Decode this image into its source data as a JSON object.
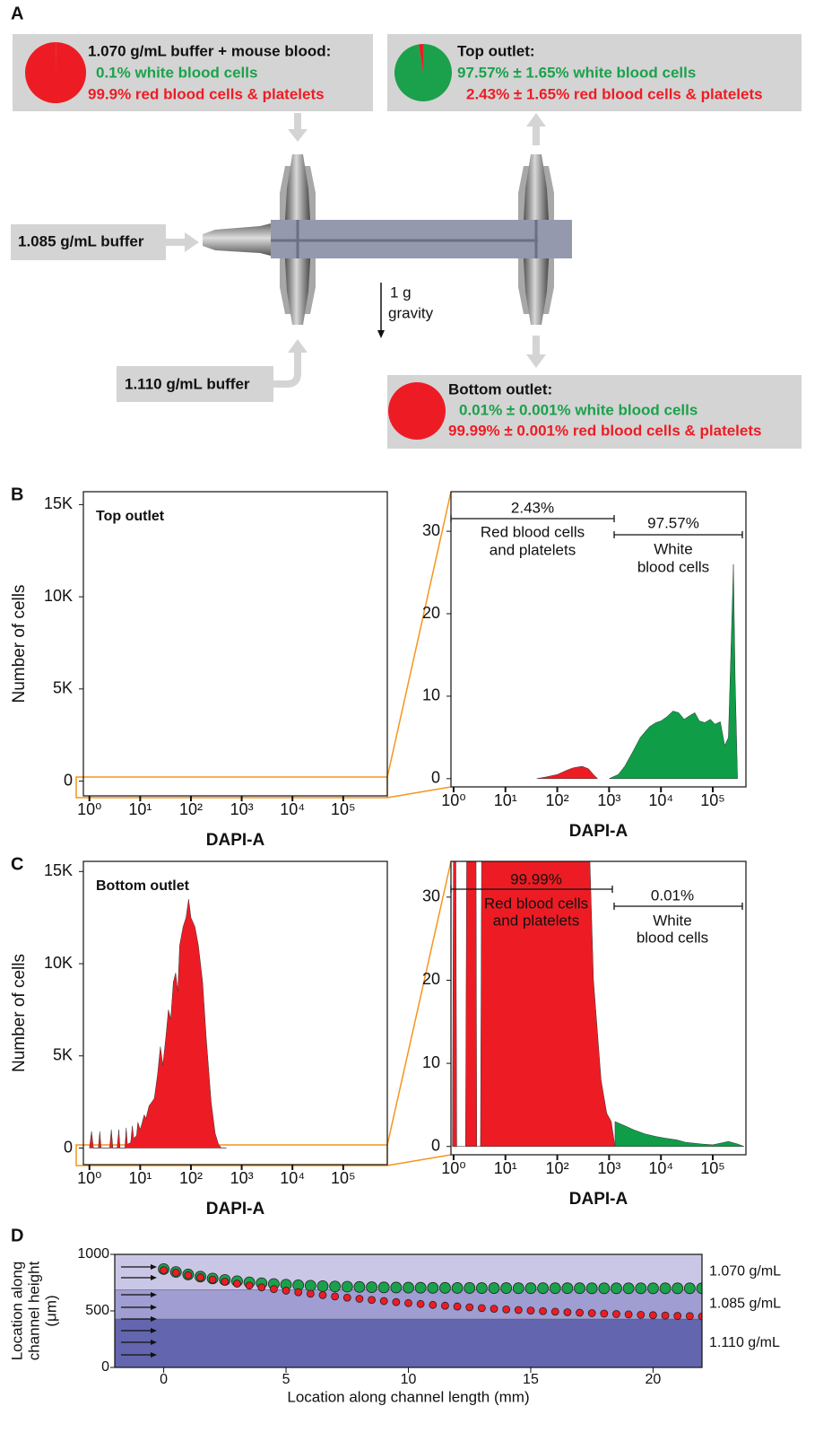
{
  "panel_labels": [
    "A",
    "B",
    "C",
    "D"
  ],
  "diagram": {
    "inlet_box": {
      "title": "1.070 g/mL buffer + mouse blood:",
      "line_wbc": "0.1% white blood cells",
      "line_rbc": "99.9% red blood cells & platelets",
      "pie": {
        "type": "pie",
        "values": [
          0.1,
          99.9
        ],
        "colors": [
          "#1ba14b",
          "#ed1c24"
        ]
      }
    },
    "top_box": {
      "title": "Top outlet:",
      "line_wbc": "97.57% ± 1.65% white blood cells",
      "line_rbc": "2.43% ± 1.65% red blood cells & platelets",
      "pie": {
        "type": "pie",
        "values": [
          97.57,
          2.43
        ],
        "colors": [
          "#1ba14b",
          "#ed1c24"
        ]
      }
    },
    "bottom_box": {
      "title": "Bottom outlet:",
      "line_wbc": "0.01% ± 0.001% white blood cells",
      "line_rbc": "99.99% ± 0.001% red blood cells & platelets",
      "pie": {
        "type": "pie",
        "values": [
          0.01,
          99.99
        ],
        "colors": [
          "#1ba14b",
          "#ed1c24"
        ]
      }
    },
    "side_inlet": "1.085 g/mL buffer",
    "bottom_inlet": "1.110 g/mL buffer",
    "gravity": [
      "1 g",
      "gravity"
    ]
  },
  "chart_data": [
    {
      "type": "area",
      "title": "Top outlet",
      "y_label": "Number of cells",
      "x_label": "DAPI-A",
      "xscale": "log",
      "xlim": [
        0.76,
        740000
      ],
      "xticks": [
        {
          "value": 1,
          "label": "10⁰"
        },
        {
          "value": 10,
          "label": "10¹"
        },
        {
          "value": 100,
          "label": "10²"
        },
        {
          "value": 1000,
          "label": "10³"
        },
        {
          "value": 10000,
          "label": "10⁴"
        },
        {
          "value": 100000,
          "label": "10⁵"
        }
      ],
      "ylim": [
        -800,
        15700
      ],
      "yticks": [
        0,
        {
          "value": 5000,
          "label": "5K"
        },
        {
          "value": 10000,
          "label": "10K"
        },
        {
          "value": 15000,
          "label": "15K"
        }
      ]
    },
    {
      "type": "area",
      "x_label": "DAPI-A",
      "xscale": "log",
      "xlim": [
        0.89,
        436000
      ],
      "xticks": [
        {
          "value": 1,
          "label": "10⁰"
        },
        {
          "value": 10,
          "label": "10¹"
        },
        {
          "value": 100,
          "label": "10²"
        },
        {
          "value": 1000,
          "label": "10³"
        },
        {
          "value": 10000,
          "label": "10⁴"
        },
        {
          "value": 100000,
          "label": "10⁵"
        }
      ],
      "ylim": [
        -1,
        34.8
      ],
      "yticks": [
        0,
        10,
        20,
        30
      ],
      "annotations": [
        [
          "2.43%",
          "Red blood cells",
          "and platelets"
        ],
        [
          "97.57%",
          "White",
          "blood cells"
        ]
      ],
      "series": [
        {
          "color": "#ed1c24",
          "x": [
            40,
            60,
            100,
            150,
            200,
            300,
            400,
            500,
            600
          ],
          "values": [
            0,
            0.2,
            0.5,
            1.0,
            1.3,
            1.5,
            1.2,
            0.5,
            0
          ]
        },
        {
          "color": "#0f9d48",
          "x": [
            1000,
            1500,
            2000,
            3000,
            4000,
            6000,
            8000,
            10000,
            13000,
            17000,
            22000,
            28000,
            35000,
            45000,
            55000,
            70000,
            90000,
            110000,
            140000,
            170000,
            200000,
            230000,
            250000,
            270000,
            300000
          ],
          "values": [
            0,
            0.5,
            1.5,
            3.5,
            5,
            6.3,
            6.8,
            7,
            7.5,
            8.2,
            8,
            7.2,
            7.6,
            8,
            7,
            6.8,
            7.2,
            6.6,
            6.9,
            4,
            5,
            18,
            26,
            12,
            0
          ]
        }
      ]
    },
    {
      "type": "area",
      "title": "Bottom outlet",
      "y_label": "Number of cells",
      "x_label": "DAPI-A",
      "xscale": "log",
      "xlim": [
        0.76,
        740000
      ],
      "xticks": [
        {
          "value": 1,
          "label": "10⁰"
        },
        {
          "value": 10,
          "label": "10¹"
        },
        {
          "value": 100,
          "label": "10²"
        },
        {
          "value": 1000,
          "label": "10³"
        },
        {
          "value": 10000,
          "label": "10⁴"
        },
        {
          "value": 100000,
          "label": "10⁵"
        }
      ],
      "ylim": [
        -900,
        15550
      ],
      "yticks": [
        0,
        {
          "value": 5000,
          "label": "5K"
        },
        {
          "value": 10000,
          "label": "10K"
        },
        {
          "value": 15000,
          "label": "15K"
        }
      ],
      "series": [
        {
          "color": "#ed1c24",
          "x": [
            1,
            1.1,
            1.2,
            1.5,
            1.6,
            1.7,
            2.5,
            2.7,
            2.9,
            3.5,
            3.8,
            4,
            5,
            5.3,
            5.6,
            6.5,
            7,
            7.5,
            8.5,
            9,
            10,
            11,
            12,
            13,
            15,
            17,
            19,
            22,
            25,
            28,
            32,
            36,
            40,
            45,
            50,
            55,
            60,
            70,
            80,
            90,
            100,
            120,
            140,
            170,
            200,
            250,
            300,
            350,
            400,
            500
          ],
          "values": [
            0,
            900,
            0,
            0,
            900,
            0,
            0,
            1000,
            0,
            0,
            1000,
            0,
            0,
            1100,
            200,
            300,
            1200,
            500,
            700,
            1400,
            1000,
            1400,
            1800,
            1600,
            2300,
            2500,
            2700,
            4000,
            5500,
            4500,
            6000,
            7500,
            7000,
            9000,
            9500,
            8500,
            11000,
            12000,
            12500,
            13500,
            12500,
            12000,
            11000,
            9000,
            6000,
            2500,
            800,
            200,
            0,
            0
          ]
        }
      ]
    },
    {
      "type": "area",
      "x_label": "DAPI-A",
      "xscale": "log",
      "xlim": [
        0.89,
        436000
      ],
      "xticks": [
        {
          "value": 1,
          "label": "10⁰"
        },
        {
          "value": 10,
          "label": "10¹"
        },
        {
          "value": 100,
          "label": "10²"
        },
        {
          "value": 1000,
          "label": "10³"
        },
        {
          "value": 10000,
          "label": "10⁴"
        },
        {
          "value": 100000,
          "label": "10⁵"
        }
      ],
      "ylim": [
        -1,
        34.3
      ],
      "yticks": [
        0,
        10,
        20,
        30
      ],
      "annotations": [
        [
          "99.99%",
          "Red blood cells",
          "and platelets"
        ],
        [
          "0.01%",
          "White",
          "blood cells"
        ]
      ],
      "series": [
        {
          "color": "#ed1c24",
          "x": [
            0.95,
            1.0,
            1.1,
            1.15,
            1.7,
            1.8,
            2.7,
            2.8,
            3.3,
            3.5,
            400,
            500,
            700,
            900,
            1100,
            1300
          ],
          "values": [
            0,
            40,
            40,
            0,
            0,
            40,
            40,
            0,
            0,
            40,
            40,
            20,
            8,
            4,
            3,
            0
          ]
        },
        {
          "color": "#0f9d48",
          "x": [
            1300,
            2000,
            3000,
            5000,
            8000,
            12000,
            20000,
            30000,
            60000,
            100000,
            200000,
            300000,
            400000
          ],
          "values": [
            3,
            2.5,
            2,
            1.5,
            1.2,
            1,
            0.8,
            0.5,
            0.3,
            0.2,
            0.6,
            0.3,
            0
          ]
        }
      ]
    },
    {
      "type": "scatter",
      "x_label": "Location along channel length (mm)",
      "y_label": [
        "Location along",
        "channel height",
        "(μm)"
      ],
      "xlim": [
        -2,
        22
      ],
      "xticks": [
        0,
        5,
        10,
        15,
        20
      ],
      "ylim": [
        0,
        1000
      ],
      "yticks": [
        0,
        500,
        1000
      ],
      "bands": [
        {
          "label": "1.110 g/mL",
          "from": 0,
          "to": 430,
          "color": "#6366ae"
        },
        {
          "label": "1.085 g/mL",
          "from": 430,
          "to": 690,
          "color": "#a09dd2"
        },
        {
          "label": "1.070 g/mL",
          "from": 690,
          "to": 1000,
          "color": "#cac7e6"
        }
      ],
      "x": [
        0,
        0.5,
        1,
        1.5,
        2,
        2.5,
        3,
        3.5,
        4,
        4.5,
        5,
        5.5,
        6,
        6.5,
        7,
        7.5,
        8,
        8.5,
        9,
        9.5,
        10,
        10.5,
        11,
        11.5,
        12,
        12.5,
        13,
        13.5,
        14,
        14.5,
        15,
        15.5,
        16,
        16.5,
        17,
        17.5,
        18,
        18.5,
        19,
        19.5,
        20,
        20.5,
        21,
        21.5,
        22
      ],
      "series": [
        {
          "color": "#1ba14b",
          "values": [
            870,
            844,
            822,
            803,
            787,
            774,
            763,
            753,
            745,
            738,
            732,
            727,
            723,
            719,
            716,
            714,
            712,
            710,
            708,
            707,
            706,
            705,
            704,
            704,
            703,
            703,
            702,
            702,
            702,
            701,
            701,
            701,
            701,
            701,
            701,
            700,
            700,
            700,
            700,
            700,
            700,
            700,
            700,
            700,
            700
          ]
        },
        {
          "color": "#ed1c24",
          "values": [
            860,
            838,
            816,
            796,
            777,
            758,
            741,
            724,
            708,
            693,
            679,
            665,
            652,
            640,
            628,
            617,
            607,
            597,
            587,
            578,
            569,
            561,
            553,
            546,
            539,
            532,
            525,
            519,
            513,
            508,
            503,
            498,
            493,
            488,
            484,
            480,
            476,
            472,
            469,
            465,
            462,
            459,
            456,
            454,
            451
          ]
        }
      ]
    }
  ]
}
